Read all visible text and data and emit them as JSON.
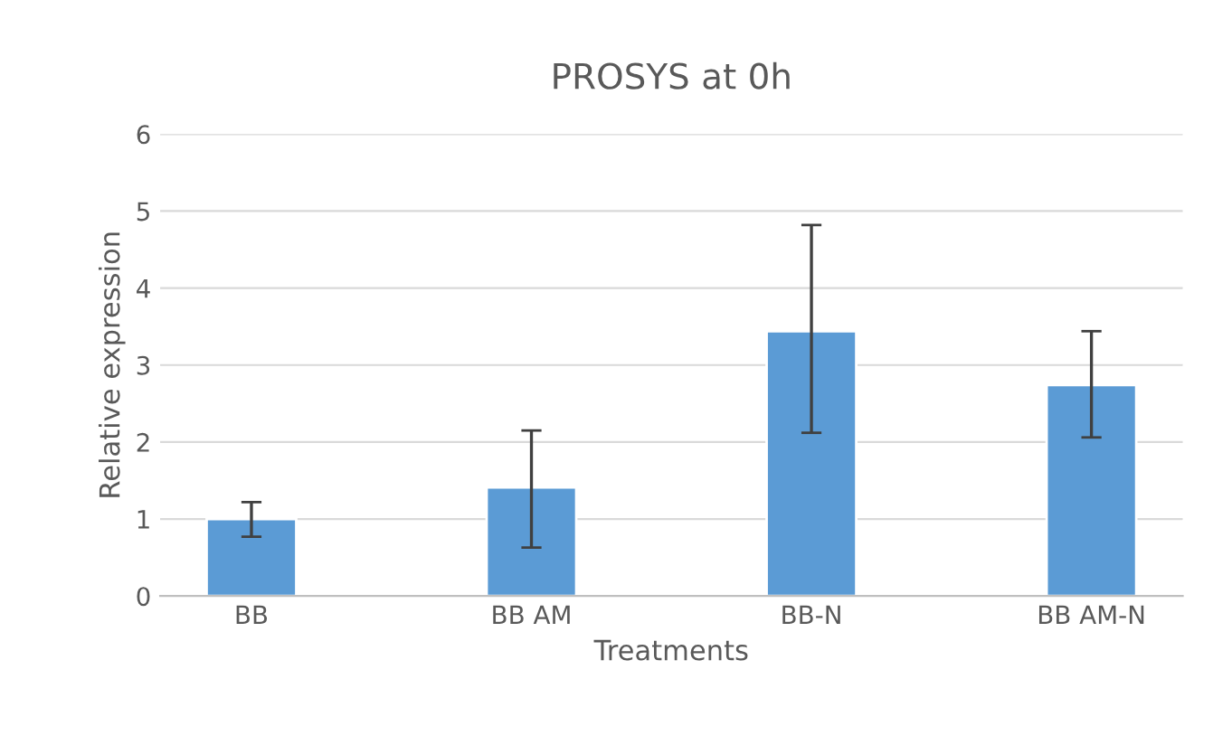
{
  "chart_data": {
    "type": "bar",
    "title": "PROSYS at 0h",
    "xlabel": "Treatments",
    "ylabel": "Relative expression",
    "categories": [
      "BB",
      "BB AM",
      "BB-N",
      "BB AM-N"
    ],
    "values": [
      1.0,
      1.41,
      3.44,
      2.74
    ],
    "errors": [
      [
        0.77,
        1.22
      ],
      [
        0.63,
        2.15
      ],
      [
        2.12,
        4.82
      ],
      [
        2.06,
        3.44
      ]
    ],
    "color": "#5b9bd5",
    "ylim": [
      0,
      6
    ],
    "yticks": [
      0,
      1,
      2,
      3,
      4,
      5,
      6
    ],
    "grid": "y"
  }
}
